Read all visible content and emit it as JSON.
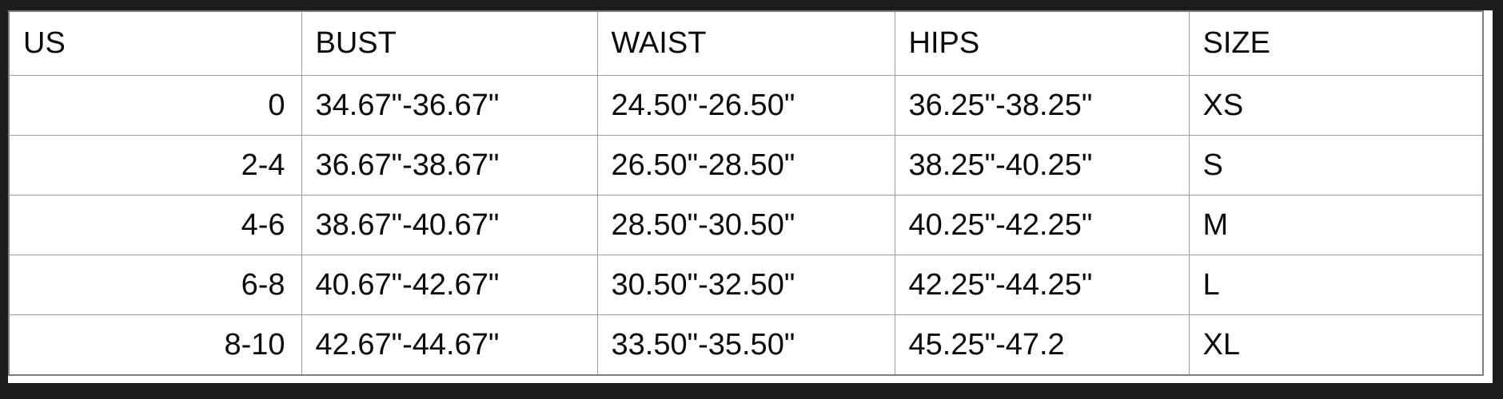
{
  "table": {
    "columns": [
      {
        "label": "US"
      },
      {
        "label": "BUST"
      },
      {
        "label": "WAIST"
      },
      {
        "label": "HIPS"
      },
      {
        "label": "SIZE"
      }
    ],
    "rows": [
      [
        "0",
        "34.67\"-36.67\"",
        "24.50\"-26.50\"",
        "36.25\"-38.25\"",
        "XS"
      ],
      [
        "2-4",
        "36.67\"-38.67\"",
        "26.50\"-28.50\"",
        "38.25\"-40.25\"",
        "S"
      ],
      [
        "4-6",
        "38.67\"-40.67\"",
        "28.50\"-30.50\"",
        "40.25\"-42.25\"",
        "M"
      ],
      [
        "6-8",
        "40.67\"-42.67\"",
        "30.50\"-32.50\"",
        "42.25\"-44.25\"",
        "L"
      ],
      [
        "8-10",
        "42.67\"-44.67\"",
        "33.50\"-35.50\"",
        "45.25\"-47.2",
        "XL"
      ]
    ]
  },
  "colors": {
    "frame_background": "#1d1d1d",
    "page_background": "#ffffff",
    "table_border": "#9c9c9c",
    "text": "#0a0a0a"
  }
}
